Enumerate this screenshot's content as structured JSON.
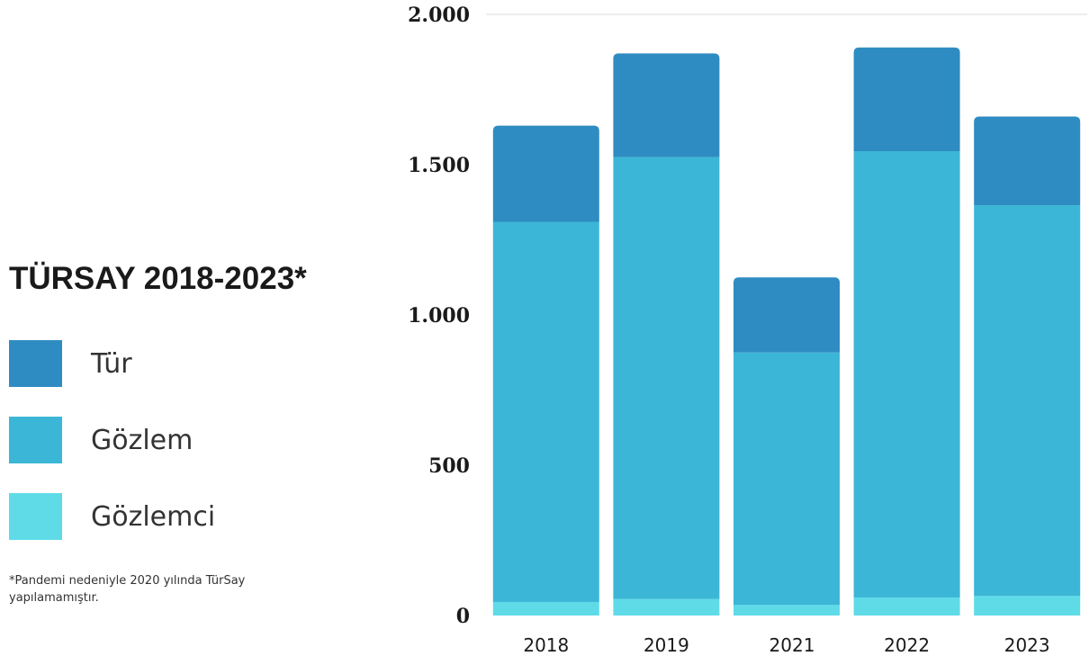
{
  "legend": {
    "title": "TÜRSAY 2018-2023*",
    "items": [
      {
        "label": "Tür",
        "color": "#2e8cc2"
      },
      {
        "label": "Gözlem",
        "color": "#3cb6d6"
      },
      {
        "label": "Gözlemci",
        "color": "#5fdbe8"
      }
    ]
  },
  "footnote": "*Pandemi nedeniyle 2020 yılında TürSay yapılamamıştır.",
  "chart_data": {
    "type": "bar",
    "stacked": true,
    "title": "TÜRSAY 2018-2023*",
    "categories": [
      "2018",
      "2019",
      "2021",
      "2022",
      "2023"
    ],
    "series": [
      {
        "name": "Gözlemci",
        "color": "#5fdbe8",
        "values": [
          45,
          55,
          35,
          60,
          65
        ]
      },
      {
        "name": "Gözlem",
        "color": "#3cb6d6",
        "values": [
          1265,
          1470,
          840,
          1485,
          1300
        ]
      },
      {
        "name": "Tür",
        "color": "#2e8cc2",
        "values": [
          320,
          345,
          250,
          345,
          295
        ]
      }
    ],
    "ylim": [
      0,
      2000
    ],
    "yticks": [
      0,
      500,
      1000,
      1500,
      2000
    ],
    "ytick_labels": [
      "0",
      "500",
      "1.000",
      "1.500",
      "2.000"
    ],
    "grid": "top line only",
    "legend_position": "left"
  }
}
